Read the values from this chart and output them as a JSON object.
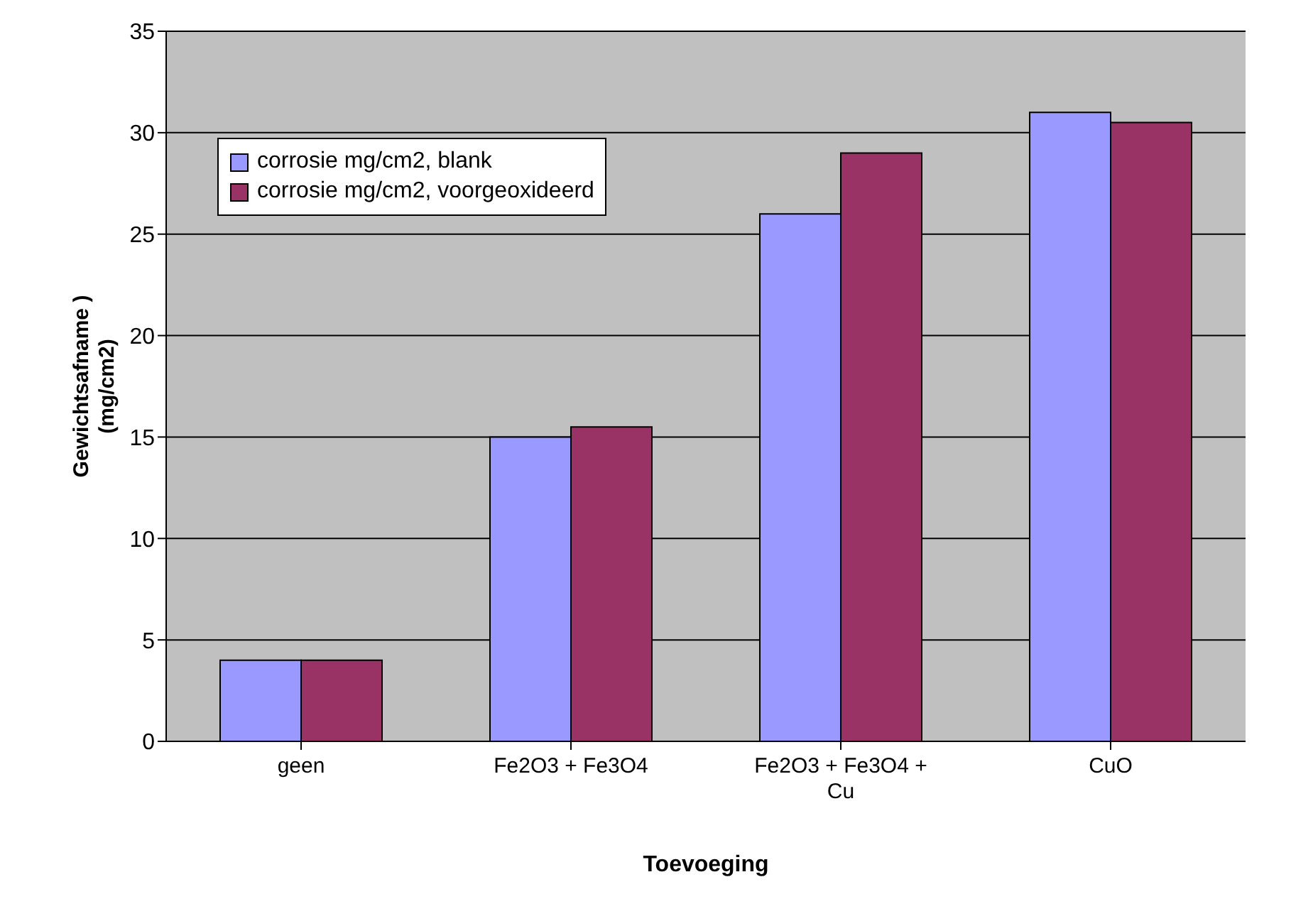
{
  "chart_data": {
    "type": "bar",
    "xlabel": "Toevoeging",
    "ylabel": "Gewichtsafname ) (mg/cm2)",
    "categories": [
      "geen",
      "Fe2O3 + Fe3O4",
      "Fe2O3 + Fe3O4 + Cu",
      "CuO"
    ],
    "series": [
      {
        "name": "corrosie mg/cm2, blank",
        "color": "#9999ff",
        "values": [
          4,
          15,
          26,
          31
        ]
      },
      {
        "name": "corrosie mg/cm2, voorgeoxideerd",
        "color": "#993366",
        "values": [
          4,
          15.5,
          29,
          30.5
        ]
      }
    ],
    "ylim": [
      0,
      35
    ],
    "yticks": [
      0,
      5,
      10,
      15,
      20,
      25,
      30,
      35
    ],
    "grid": "y",
    "legend": "top left"
  }
}
